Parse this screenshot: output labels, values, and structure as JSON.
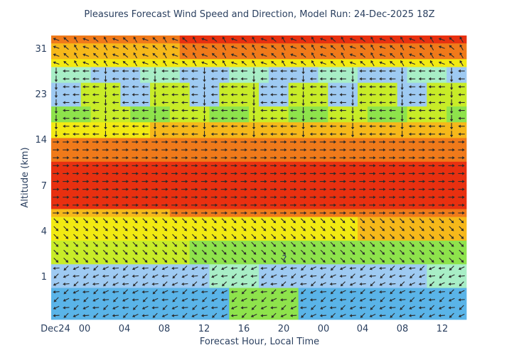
{
  "chart_data": {
    "type": "heatmap",
    "title": "Pleasures Forecast Wind Speed and Direction, Model Run: 24-Dec-2025 18Z",
    "xlabel": "Forecast Hour, Local Time",
    "ylabel": "Altitude (km)",
    "x_tick_labels": [
      "Dec24",
      "00",
      "04",
      "08",
      "12",
      "16",
      "20",
      "00",
      "04",
      "08",
      "12"
    ],
    "y_tick_labels": [
      "31",
      "23",
      "14",
      "7",
      "4",
      "1"
    ],
    "forecast_hours": 42,
    "altitude_levels": 36,
    "encoding": "cell color = wind speed (blue low, green, yellow, orange, red high); arrow = wind direction",
    "color_scale": [
      "#5ab4e8",
      "#9ecaf2",
      "#a8eec6",
      "#8ee34c",
      "#c8ec28",
      "#f2ea12",
      "#f6b81a",
      "#f07a1a",
      "#e83010"
    ],
    "annotations": [
      "?"
    ],
    "legend": "none",
    "grid": false
  }
}
